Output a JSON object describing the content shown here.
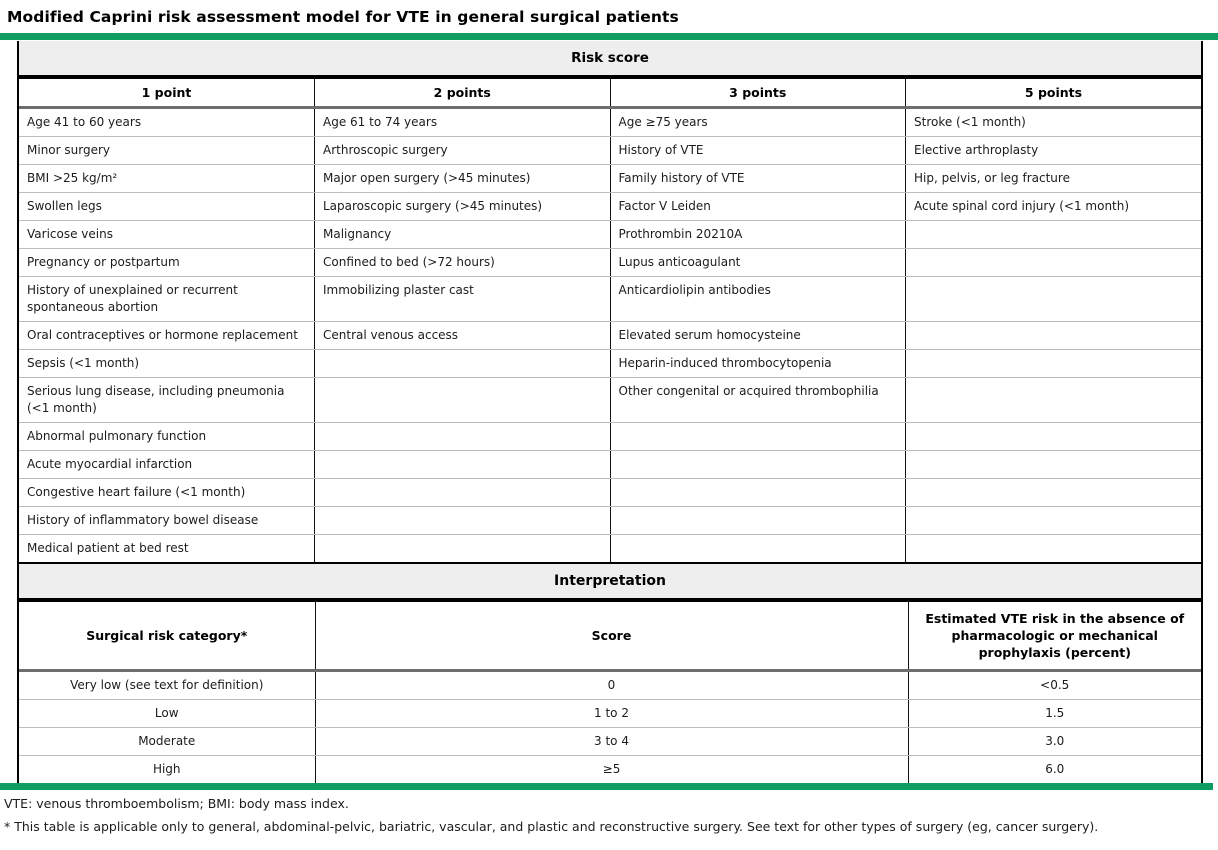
{
  "title": "Modified Caprini risk assessment model for VTE in general surgical patients",
  "colors": {
    "accent_green": "#0f9d62",
    "section_band_bg": "#eeeeee",
    "border_black": "#000000",
    "border_dark_gray": "#6e6e6e",
    "row_divider_gray": "#bdbdbd"
  },
  "risk_table": {
    "section_title": "Risk score",
    "columns": [
      "1 point",
      "2 points",
      "3 points",
      "5 points"
    ],
    "rows": [
      [
        "Age 41 to 60 years",
        "Age 61 to 74 years",
        "Age ≥75 years",
        "Stroke (<1 month)"
      ],
      [
        "Minor surgery",
        "Arthroscopic surgery",
        "History of VTE",
        "Elective arthroplasty"
      ],
      [
        "BMI >25 kg/m²",
        "Major open surgery (>45 minutes)",
        "Family history of VTE",
        "Hip, pelvis, or leg fracture"
      ],
      [
        "Swollen legs",
        "Laparoscopic surgery (>45 minutes)",
        "Factor V Leiden",
        "Acute spinal cord injury (<1 month)"
      ],
      [
        "Varicose veins",
        "Malignancy",
        "Prothrombin 20210A",
        ""
      ],
      [
        "Pregnancy or postpartum",
        "Confined to bed (>72 hours)",
        "Lupus anticoagulant",
        ""
      ],
      [
        "History of unexplained or recurrent spontaneous abortion",
        "Immobilizing plaster cast",
        "Anticardiolipin antibodies",
        ""
      ],
      [
        "Oral contraceptives or hormone replacement",
        "Central venous access",
        "Elevated serum homocysteine",
        ""
      ],
      [
        "Sepsis (<1 month)",
        "",
        "Heparin-induced thrombocytopenia",
        ""
      ],
      [
        "Serious lung disease, including pneumonia (<1 month)",
        "",
        "Other congenital or acquired thrombophilia",
        ""
      ],
      [
        "Abnormal pulmonary function",
        "",
        "",
        ""
      ],
      [
        "Acute myocardial infarction",
        "",
        "",
        ""
      ],
      [
        "Congestive heart failure (<1 month)",
        "",
        "",
        ""
      ],
      [
        "History of inflammatory bowel disease",
        "",
        "",
        ""
      ],
      [
        "Medical patient at bed rest",
        "",
        "",
        ""
      ]
    ]
  },
  "interpretation_table": {
    "section_title": "Interpretation",
    "columns": [
      "Surgical risk category*",
      "Score",
      "Estimated VTE risk in the absence of pharmacologic or mechanical prophylaxis (percent)"
    ],
    "rows": [
      [
        "Very low (see text for definition)",
        "0",
        "<0.5"
      ],
      [
        "Low",
        "1 to 2",
        "1.5"
      ],
      [
        "Moderate",
        "3 to 4",
        "3.0"
      ],
      [
        "High",
        "≥5",
        "6.0"
      ]
    ]
  },
  "footnotes": [
    "VTE: venous thromboembolism; BMI: body mass index.",
    "* This table is applicable only to general, abdominal-pelvic, bariatric, vascular, and plastic and reconstructive surgery. See text for other types of surgery (eg, cancer surgery)."
  ]
}
